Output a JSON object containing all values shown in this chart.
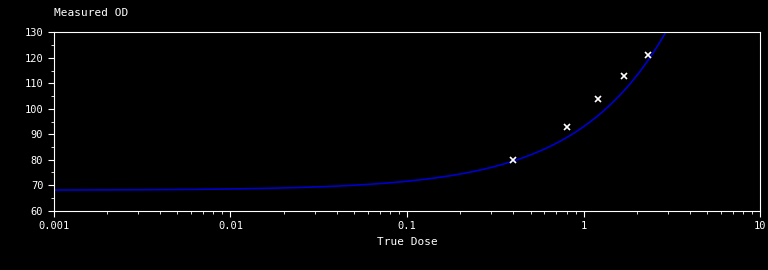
{
  "title": "",
  "ylabel": "Measured OD",
  "xlabel": "True Dose",
  "background_color": "#000000",
  "text_color": "#ffffff",
  "curve_color": "#0000cc",
  "marker_color": "#ffffff",
  "xlim": [
    0.001,
    10
  ],
  "ylim": [
    60,
    130
  ],
  "yticks": [
    60,
    70,
    80,
    90,
    100,
    110,
    120,
    130
  ],
  "data_points_x": [
    0.4,
    0.8,
    1.2,
    1.7,
    2.3
  ],
  "data_points_y": [
    80,
    93,
    104,
    113,
    121
  ],
  "curve_a": 68.0,
  "curve_b": 25.0,
  "curve_c": 0.85,
  "figsize": [
    7.68,
    2.7
  ],
  "dpi": 100
}
